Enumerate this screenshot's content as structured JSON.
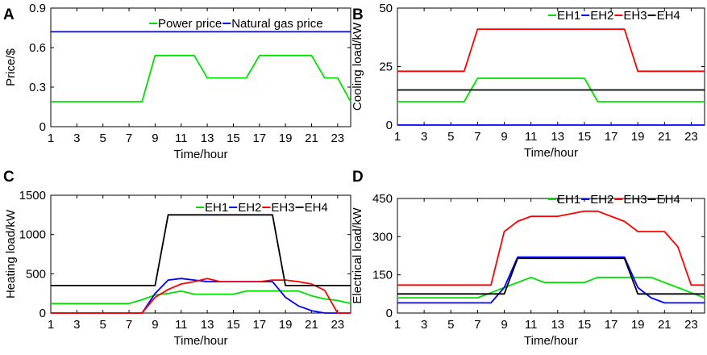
{
  "chart_data": [
    {
      "panel": "A",
      "type": "line",
      "title": "",
      "xlabel": "Time/hour",
      "ylabel": "Price/$",
      "xlim": [
        1,
        24
      ],
      "ylim": [
        0,
        0.9
      ],
      "xticks": [
        "1",
        "3",
        "5",
        "7",
        "9",
        "11",
        "13",
        "15",
        "17",
        "19",
        "21",
        "23"
      ],
      "yticks": [
        "0",
        "0.3",
        "0.6",
        "0.9"
      ],
      "x": [
        1,
        2,
        3,
        4,
        5,
        6,
        7,
        8,
        9,
        10,
        11,
        12,
        13,
        14,
        15,
        16,
        17,
        18,
        19,
        20,
        21,
        22,
        23,
        24
      ],
      "series": [
        {
          "name": "Power price",
          "color": "#00e000",
          "values": [
            0.19,
            0.19,
            0.19,
            0.19,
            0.19,
            0.19,
            0.19,
            0.19,
            0.54,
            0.54,
            0.54,
            0.54,
            0.37,
            0.37,
            0.37,
            0.37,
            0.54,
            0.54,
            0.54,
            0.54,
            0.54,
            0.37,
            0.37,
            0.19
          ]
        },
        {
          "name": "Natural gas price",
          "color": "#0000ff",
          "values": [
            0.72,
            0.72,
            0.72,
            0.72,
            0.72,
            0.72,
            0.72,
            0.72,
            0.72,
            0.72,
            0.72,
            0.72,
            0.72,
            0.72,
            0.72,
            0.72,
            0.72,
            0.72,
            0.72,
            0.72,
            0.72,
            0.72,
            0.72,
            0.72
          ]
        }
      ]
    },
    {
      "panel": "B",
      "type": "line",
      "title": "",
      "xlabel": "Time/hour",
      "ylabel": "Cooling load/kW",
      "xlim": [
        1,
        24
      ],
      "ylim": [
        0,
        50
      ],
      "xticks": [
        "1",
        "3",
        "5",
        "7",
        "9",
        "11",
        "13",
        "15",
        "17",
        "19",
        "21",
        "23"
      ],
      "yticks": [
        "0",
        "25",
        "50"
      ],
      "x": [
        1,
        2,
        3,
        4,
        5,
        6,
        7,
        8,
        9,
        10,
        11,
        12,
        13,
        14,
        15,
        16,
        17,
        18,
        19,
        20,
        21,
        22,
        23,
        24
      ],
      "series": [
        {
          "name": "EH1",
          "color": "#00e000",
          "values": [
            10,
            10,
            10,
            10,
            10,
            10,
            20,
            20,
            20,
            20,
            20,
            20,
            20,
            20,
            20,
            10,
            10,
            10,
            10,
            10,
            10,
            10,
            10,
            10
          ]
        },
        {
          "name": "EH2",
          "color": "#0000ff",
          "values": [
            0,
            0,
            0,
            0,
            0,
            0,
            0,
            0,
            0,
            0,
            0,
            0,
            0,
            0,
            0,
            0,
            0,
            0,
            0,
            0,
            0,
            0,
            0,
            0
          ]
        },
        {
          "name": "EH3",
          "color": "#ff0000",
          "values": [
            23,
            23,
            23,
            23,
            23,
            23,
            41,
            41,
            41,
            41,
            41,
            41,
            41,
            41,
            41,
            41,
            41,
            41,
            23,
            23,
            23,
            23,
            23,
            23
          ]
        },
        {
          "name": "EH4",
          "color": "#000000",
          "values": [
            15,
            15,
            15,
            15,
            15,
            15,
            15,
            15,
            15,
            15,
            15,
            15,
            15,
            15,
            15,
            15,
            15,
            15,
            15,
            15,
            15,
            15,
            15,
            15
          ]
        }
      ]
    },
    {
      "panel": "C",
      "type": "line",
      "title": "",
      "xlabel": "Time/hour",
      "ylabel": "Heating load/kW",
      "xlim": [
        1,
        24
      ],
      "ylim": [
        0,
        1500
      ],
      "xticks": [
        "1",
        "3",
        "5",
        "7",
        "9",
        "11",
        "13",
        "15",
        "17",
        "19",
        "21",
        "23"
      ],
      "yticks": [
        "0",
        "500",
        "1000",
        "1500"
      ],
      "x": [
        1,
        2,
        3,
        4,
        5,
        6,
        7,
        8,
        9,
        10,
        11,
        12,
        13,
        14,
        15,
        16,
        17,
        18,
        19,
        20,
        21,
        22,
        23,
        24
      ],
      "series": [
        {
          "name": "EH1",
          "color": "#00e000",
          "values": [
            120,
            120,
            120,
            120,
            120,
            120,
            120,
            170,
            230,
            250,
            280,
            240,
            240,
            240,
            240,
            280,
            280,
            280,
            280,
            280,
            220,
            180,
            160,
            120
          ]
        },
        {
          "name": "EH2",
          "color": "#0000ff",
          "values": [
            0,
            0,
            0,
            0,
            0,
            0,
            0,
            0,
            250,
            420,
            440,
            420,
            400,
            400,
            400,
            400,
            400,
            400,
            200,
            90,
            30,
            0,
            0,
            0
          ]
        },
        {
          "name": "EH3",
          "color": "#ff0000",
          "values": [
            0,
            0,
            0,
            0,
            0,
            0,
            0,
            0,
            200,
            300,
            370,
            400,
            440,
            400,
            400,
            400,
            400,
            420,
            420,
            400,
            370,
            290,
            0,
            0
          ]
        },
        {
          "name": "EH4",
          "color": "#000000",
          "values": [
            350,
            350,
            350,
            350,
            350,
            350,
            350,
            350,
            350,
            1250,
            1250,
            1250,
            1250,
            1250,
            1250,
            1250,
            1250,
            1250,
            350,
            350,
            350,
            350,
            350,
            350
          ]
        }
      ]
    },
    {
      "panel": "D",
      "type": "line",
      "title": "",
      "xlabel": "Time/hour",
      "ylabel": "Electrical load/kW",
      "xlim": [
        1,
        24
      ],
      "ylim": [
        0,
        450
      ],
      "xticks": [
        "1",
        "3",
        "5",
        "7",
        "9",
        "11",
        "13",
        "15",
        "17",
        "19",
        "21",
        "23"
      ],
      "yticks": [
        "0",
        "150",
        "300",
        "450"
      ],
      "x": [
        1,
        2,
        3,
        4,
        5,
        6,
        7,
        8,
        9,
        10,
        11,
        12,
        13,
        14,
        15,
        16,
        17,
        18,
        19,
        20,
        21,
        22,
        23,
        24
      ],
      "series": [
        {
          "name": "EH1",
          "color": "#00e000",
          "values": [
            60,
            60,
            60,
            60,
            60,
            60,
            60,
            80,
            100,
            120,
            140,
            120,
            120,
            120,
            120,
            140,
            140,
            140,
            140,
            140,
            120,
            100,
            80,
            60
          ]
        },
        {
          "name": "EH2",
          "color": "#0000ff",
          "values": [
            40,
            40,
            40,
            40,
            40,
            40,
            40,
            40,
            100,
            220,
            220,
            220,
            220,
            220,
            220,
            220,
            220,
            220,
            100,
            60,
            40,
            40,
            40,
            40
          ]
        },
        {
          "name": "EH3",
          "color": "#ff0000",
          "values": [
            110,
            110,
            110,
            110,
            110,
            110,
            110,
            110,
            320,
            360,
            380,
            380,
            380,
            390,
            400,
            400,
            380,
            360,
            320,
            320,
            320,
            260,
            110,
            110
          ]
        },
        {
          "name": "EH4",
          "color": "#000000",
          "values": [
            75,
            75,
            75,
            75,
            75,
            75,
            75,
            75,
            75,
            215,
            215,
            215,
            215,
            215,
            215,
            215,
            215,
            215,
            75,
            75,
            75,
            75,
            75,
            75
          ]
        }
      ]
    }
  ]
}
